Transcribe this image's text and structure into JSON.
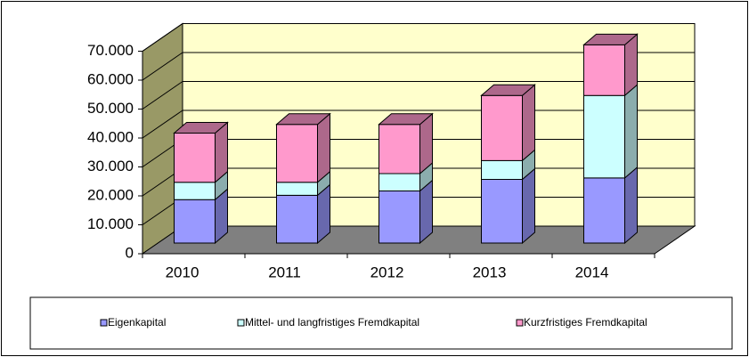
{
  "chart_data": {
    "type": "bar",
    "stacked": true,
    "three_d": true,
    "categories": [
      "2010",
      "2011",
      "2012",
      "2013",
      "2014"
    ],
    "series": [
      {
        "name": "Eigenkapital",
        "color": "#9999ff",
        "values": [
          15000,
          16500,
          18000,
          22000,
          22500
        ]
      },
      {
        "name": "Mittel- und langfristiges Fremdkapital",
        "color": "#ccffff",
        "values": [
          6000,
          4500,
          6000,
          6500,
          28500
        ]
      },
      {
        "name": "Kurzfristiges Fremdkapital",
        "color": "#ff99cc",
        "values": [
          17000,
          20000,
          17000,
          22500,
          17500
        ]
      }
    ],
    "ylim": [
      0,
      70000
    ],
    "yticks": [
      0,
      {
        "value": 10000,
        "label": "10.000"
      },
      {
        "value": 20000,
        "label": "20.000"
      },
      {
        "value": 30000,
        "label": "30.000"
      },
      {
        "value": 40000,
        "label": "40.000"
      },
      {
        "value": 50000,
        "label": "50.000"
      },
      {
        "value": 60000,
        "label": "60.000"
      },
      {
        "value": 70000,
        "label": "70.000"
      }
    ],
    "grid": true,
    "legend": "bottom"
  }
}
